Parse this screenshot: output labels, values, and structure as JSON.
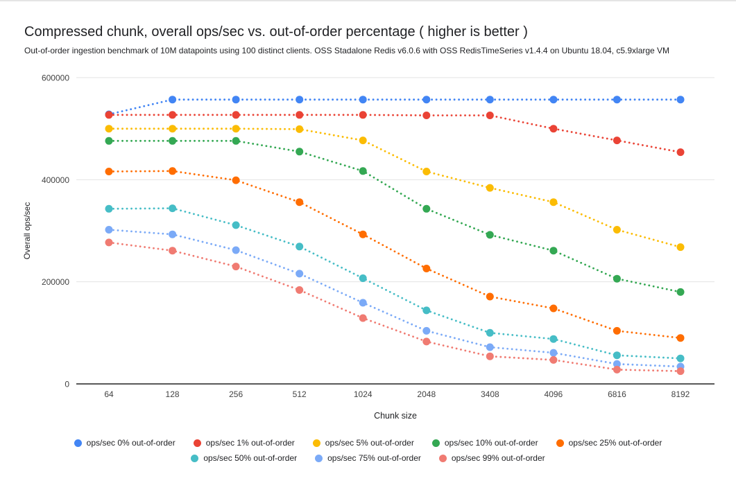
{
  "page": {
    "title": "Compressed chunk, overall ops/sec vs. out-of-order percentage ( higher is better )",
    "subtitle": "Out-of-order ingestion benchmark of 10M datapoints using 100 distinct clients. OSS Stadalone Redis v6.0.6 with OSS RedisTimeSeries v1.4.4 on Ubuntu 18.04, c5.9xlarge VM"
  },
  "chart_data": {
    "type": "line",
    "style": "dotted-lines-with-round-points",
    "title": "Compressed chunk, overall ops/sec vs. out-of-order percentage ( higher is better )",
    "xlabel": "Chunk size",
    "ylabel": "Overall ops/sec",
    "categories": [
      "64",
      "128",
      "256",
      "512",
      "1024",
      "2048",
      "3408",
      "4096",
      "6816",
      "8192"
    ],
    "ylim": [
      0,
      600000
    ],
    "y_ticks": [
      0,
      200000,
      400000,
      600000
    ],
    "grid": true,
    "legend_position": "bottom",
    "axis_colors": {
      "gridline": "#e3e3e3",
      "baseline": "#212121",
      "tick_label": "#424242"
    },
    "series": [
      {
        "name": "ops/sec 0% out-of-order",
        "color": "#4285F4",
        "values": [
          528000,
          557000,
          557000,
          557000,
          557000,
          557000,
          557000,
          557000,
          557000,
          557000
        ]
      },
      {
        "name": "ops/sec 1% out-of-order",
        "color": "#EA4335",
        "values": [
          527000,
          527000,
          527000,
          527000,
          527000,
          526000,
          526000,
          500000,
          477000,
          454000
        ]
      },
      {
        "name": "ops/sec 5% out-of-order",
        "color": "#FBBC04",
        "values": [
          500000,
          500000,
          500000,
          499000,
          477000,
          416000,
          384000,
          356000,
          302000,
          268000
        ]
      },
      {
        "name": "ops/sec 10% out-of-order",
        "color": "#34A853",
        "values": [
          476000,
          476000,
          476000,
          455000,
          417000,
          343000,
          292000,
          261000,
          206000,
          180000
        ]
      },
      {
        "name": "ops/sec 25% out-of-order",
        "color": "#FF6D01",
        "values": [
          416000,
          417000,
          399000,
          356000,
          293000,
          226000,
          171000,
          148000,
          104000,
          90000
        ]
      },
      {
        "name": "ops/sec 50% out-of-order",
        "color": "#46BDC6",
        "values": [
          343000,
          344000,
          311000,
          269000,
          207000,
          144000,
          100000,
          88000,
          56000,
          50000
        ]
      },
      {
        "name": "ops/sec 75% out-of-order",
        "color": "#7BAAF7",
        "values": [
          302000,
          293000,
          262000,
          216000,
          159000,
          104000,
          72000,
          61000,
          39000,
          34000
        ]
      },
      {
        "name": "ops/sec 99% out-of-order",
        "color": "#F07B72",
        "values": [
          277000,
          261000,
          230000,
          184000,
          129000,
          83000,
          54000,
          47000,
          28000,
          25000
        ]
      }
    ],
    "legend_rows": [
      5,
      3
    ]
  }
}
